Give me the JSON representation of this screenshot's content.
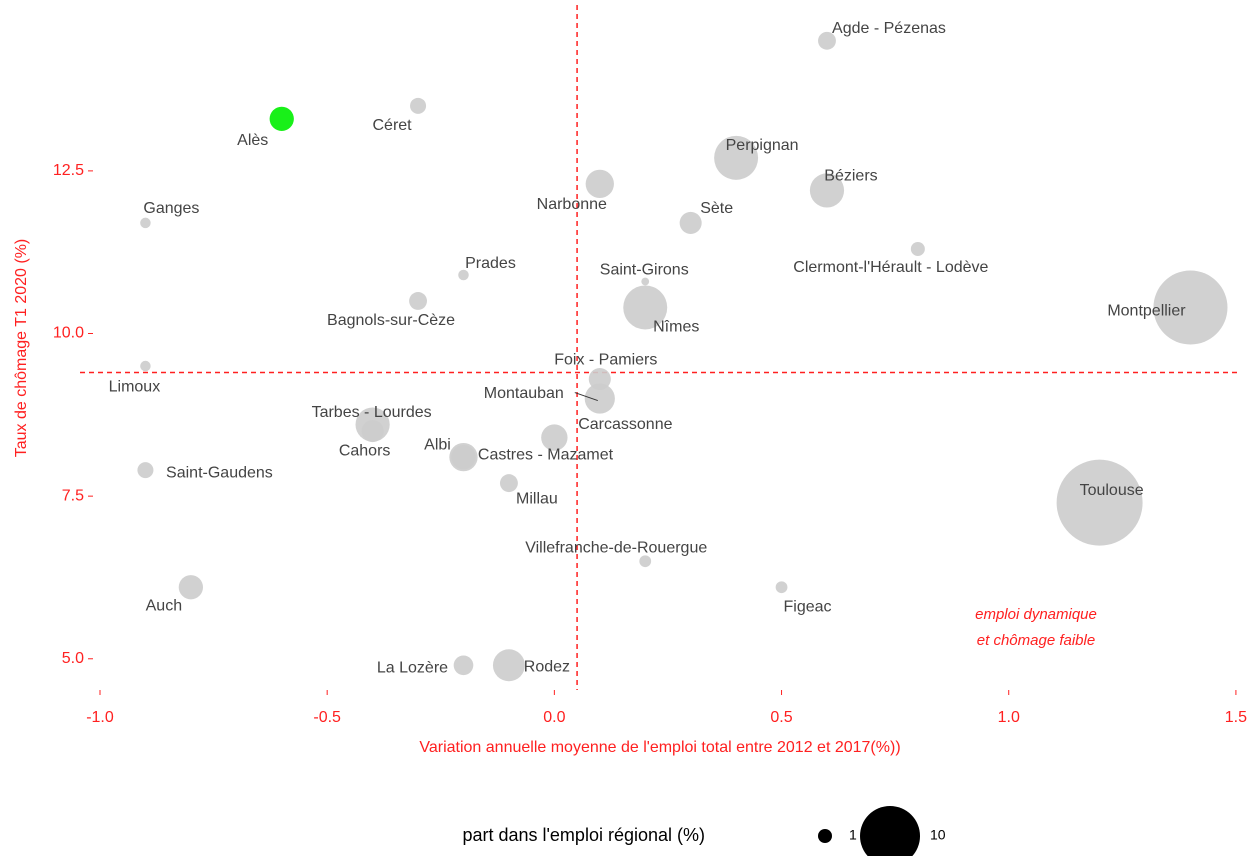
{
  "chart_data": {
    "type": "scatter",
    "xlabel": "Variation annuelle moyenne de l'emploi total entre 2012 et 2017(%))",
    "ylabel": "Taux de chômage T1 2020 (%)",
    "xlim": [
      -1.044,
      1.509
    ],
    "ylim": [
      4.52,
      15.05
    ],
    "xticks": [
      {
        "value": -1,
        "label": "-1.0"
      },
      {
        "value": -0.5,
        "label": "-0.5"
      },
      {
        "value": 0,
        "label": "0.0"
      },
      {
        "value": 0.5,
        "label": "0.5"
      },
      {
        "value": 1,
        "label": "1.0"
      },
      {
        "value": 1.5,
        "label": "1.5"
      }
    ],
    "yticks": [
      {
        "value": 5,
        "label": "5.0"
      },
      7.5,
      {
        "value": 10,
        "label": "10.0"
      },
      12.5
    ],
    "vline": 0.05,
    "hline": 9.4,
    "reference_color": "#ff2020",
    "annotation": [
      "emploi dynamique",
      "et chômage faible"
    ],
    "labels": [
      "Agde - Pézenas",
      "Alès",
      "Céret",
      "Perpignan",
      "Béziers",
      "Narbonne",
      "Ganges",
      "Sète",
      "Clermont-l'Hérault - Lodève",
      "Prades",
      "Saint-Girons",
      "Bagnols-sur-Cèze",
      "Nîmes",
      "Montpellier",
      "Limoux",
      "Foix - Pamiers",
      "Montauban",
      "Tarbes - Lourdes",
      "Cahors",
      "Carcassonne",
      "Albi",
      "Castres - Mazamet",
      "Saint-Gaudens",
      "Millau",
      "Toulouse",
      "Villefranche-de-Rouergue",
      "Figeac",
      "Auch",
      "La Lozère",
      "Rodez"
    ],
    "x": [
      0.6,
      -0.6,
      -0.3,
      0.4,
      0.6,
      0.1,
      -0.9,
      0.3,
      0.8,
      -0.2,
      0.2,
      -0.3,
      0.2,
      1.4,
      -0.9,
      0.1,
      0.1,
      -0.4,
      -0.4,
      0.0,
      -0.2,
      -0.2,
      -0.9,
      -0.1,
      1.2,
      0.2,
      0.5,
      -0.8,
      -0.2,
      -0.1
    ],
    "values": [
      14.5,
      13.3,
      13.5,
      12.7,
      12.2,
      12.3,
      11.7,
      11.7,
      11.3,
      10.9,
      10.8,
      10.5,
      10.4,
      10.4,
      9.5,
      9.3,
      9.0,
      8.6,
      8.5,
      8.4,
      8.1,
      8.1,
      7.9,
      7.7,
      7.4,
      6.5,
      6.1,
      6.1,
      4.9,
      4.9
    ],
    "sizes": [
      1.4,
      2.2,
      1.2,
      5.8,
      3.8,
      2.8,
      0.7,
      1.9,
      1.0,
      0.7,
      0.5,
      1.4,
      5.8,
      14.6,
      0.7,
      1.9,
      3.1,
      3.8,
      1.9,
      2.5,
      2.8,
      2.2,
      1.2,
      1.4,
      19.2,
      0.8,
      0.8,
      2.2,
      1.6,
      3.4
    ],
    "colors": [
      "#cccccc",
      "#00ee00",
      "#cccccc",
      "#cccccc",
      "#cccccc",
      "#cccccc",
      "#cccccc",
      "#cccccc",
      "#cccccc",
      "#cccccc",
      "#cccccc",
      "#cccccc",
      "#cccccc",
      "#cccccc",
      "#cccccc",
      "#cccccc",
      "#cccccc",
      "#cccccc",
      "#cccccc",
      "#cccccc",
      "#cccccc",
      "#cccccc",
      "#cccccc",
      "#cccccc",
      "#cccccc",
      "#cccccc",
      "#cccccc",
      "#cccccc",
      "#cccccc",
      "#cccccc"
    ],
    "size_legend": {
      "title": "part dans l'emploi régional (%)",
      "values": [
        1,
        10
      ]
    }
  }
}
